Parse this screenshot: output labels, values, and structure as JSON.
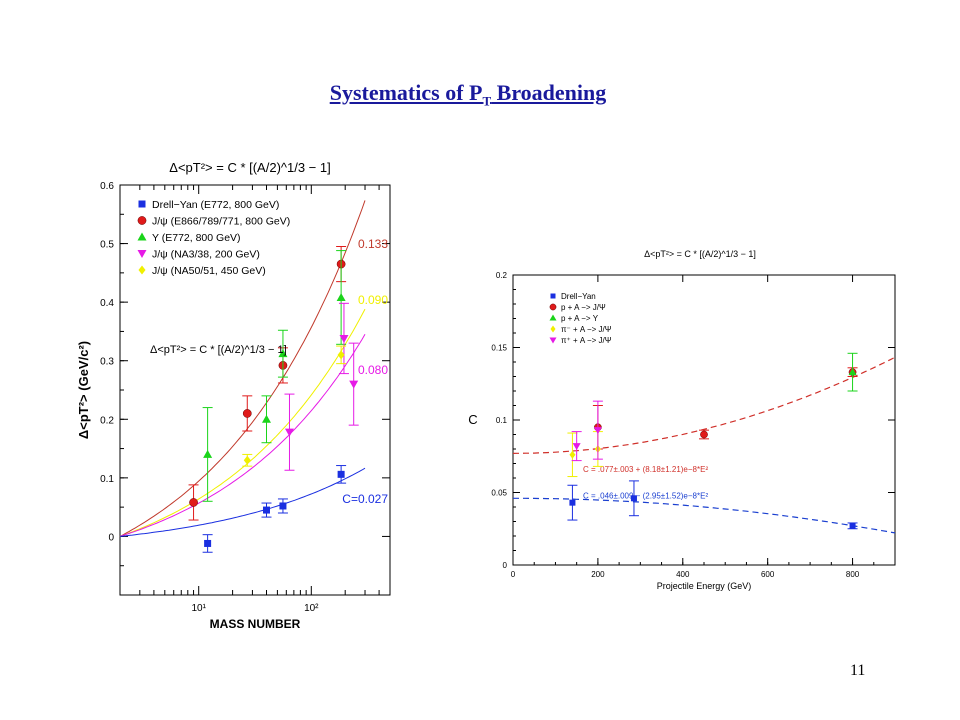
{
  "slide": {
    "title_main": "Systematics of P",
    "title_sub": "T",
    "title_rest": " Broadening",
    "page_number": "11"
  },
  "chart_data": [
    {
      "type": "scatter",
      "title": "Δ<pT²> = C * [(A/2)^1/3 − 1]",
      "xlabel": "MASS NUMBER",
      "ylabel": "Δ<pT²> (GeV/c²)",
      "xscale": "log",
      "xlim": [
        2,
        500
      ],
      "ylim": [
        -0.1,
        0.6
      ],
      "x_ticks": [
        "10¹",
        "10²"
      ],
      "y_ticks": [
        "0",
        "0.1",
        "0.2",
        "0.3",
        "0.4",
        "0.5",
        "0.6"
      ],
      "legend_placement": "top-left",
      "formula_annotation": "Δ<pT²> = C * [(A/2)^1/3 − 1]",
      "series": [
        {
          "name": "Drell−Yan (E772, 800 GeV)",
          "color": "#1a2fe0",
          "marker": "square",
          "points": [
            {
              "x": 12,
              "y": -0.012,
              "err": 0.015
            },
            {
              "x": 40,
              "y": 0.045,
              "err": 0.012
            },
            {
              "x": 56,
              "y": 0.052,
              "err": 0.012
            },
            {
              "x": 184,
              "y": 0.106,
              "err": 0.015
            }
          ]
        },
        {
          "name": "J/ψ (E866/789/771, 800 GeV)",
          "color": "#e01a1a",
          "marker": "circle",
          "points": [
            {
              "x": 9,
              "y": 0.058,
              "err": 0.03
            },
            {
              "x": 27,
              "y": 0.21,
              "err": 0.03
            },
            {
              "x": 56,
              "y": 0.292,
              "err": 0.03
            },
            {
              "x": 184,
              "y": 0.465,
              "err": 0.03
            }
          ]
        },
        {
          "name": "Υ (E772, 800 GeV)",
          "color": "#1ad41a",
          "marker": "triangle-up",
          "points": [
            {
              "x": 12,
              "y": 0.14,
              "err": 0.08
            },
            {
              "x": 40,
              "y": 0.2,
              "err": 0.04
            },
            {
              "x": 56,
              "y": 0.312,
              "err": 0.04
            },
            {
              "x": 184,
              "y": 0.408,
              "err": 0.08
            }
          ]
        },
        {
          "name": "J/ψ (NA3/38, 200 GeV)",
          "color": "#e61ae6",
          "marker": "triangle-down",
          "points": [
            {
              "x": 64,
              "y": 0.178,
              "err": 0.065
            },
            {
              "x": 195,
              "y": 0.338,
              "err": 0.06
            },
            {
              "x": 238,
              "y": 0.26,
              "err": 0.07
            }
          ]
        },
        {
          "name": "J/ψ (NA50/51, 450 GeV)",
          "color": "#f0f000",
          "marker": "diamond",
          "points": [
            {
              "x": 27,
              "y": 0.13,
              "err": 0.01
            },
            {
              "x": 184,
              "y": 0.31,
              "err": 0.015
            }
          ]
        }
      ],
      "fits": [
        {
          "label": "0.133",
          "C": 0.133,
          "color": "#c0392b"
        },
        {
          "label": "0.090",
          "C": 0.09,
          "color": "#f0f000"
        },
        {
          "label": "0.080",
          "C": 0.08,
          "color": "#e61ae6"
        },
        {
          "label": "C=0.027",
          "C": 0.027,
          "color": "#1a2fe0"
        }
      ]
    },
    {
      "type": "scatter",
      "title": "Δ<pT²> = C * [(A/2)^1/3 − 1]",
      "xlabel": "Projectile Energy (GeV)",
      "ylabel": "C",
      "xlim": [
        0,
        900
      ],
      "ylim": [
        0,
        0.2
      ],
      "x_ticks": [
        "0",
        "200",
        "400",
        "600",
        "800"
      ],
      "y_ticks": [
        "0",
        "0.05",
        "0.1",
        "0.15",
        "0.2"
      ],
      "legend_placement": "top-left",
      "series": [
        {
          "name": "Drell−Yan",
          "color": "#1a2fe0",
          "marker": "square",
          "points": [
            {
              "x": 140,
              "y": 0.043,
              "err": 0.012
            },
            {
              "x": 285,
              "y": 0.046,
              "err": 0.012
            },
            {
              "x": 800,
              "y": 0.027,
              "err": 0.002
            }
          ]
        },
        {
          "name": "p + A −> J/Ψ",
          "color": "#e01a1a",
          "marker": "circle",
          "points": [
            {
              "x": 200,
              "y": 0.095,
              "err": 0.015
            },
            {
              "x": 450,
              "y": 0.09,
              "err": 0.003
            },
            {
              "x": 800,
              "y": 0.133,
              "err": 0.003
            }
          ]
        },
        {
          "name": "p + A −> Υ",
          "color": "#1ad41a",
          "marker": "triangle-up",
          "points": [
            {
              "x": 800,
              "y": 0.133,
              "err": 0.013
            }
          ]
        },
        {
          "name": "π⁻ + A −> J/Ψ",
          "color": "#f0f000",
          "marker": "diamond",
          "points": [
            {
              "x": 140,
              "y": 0.076,
              "err": 0.015
            },
            {
              "x": 200,
              "y": 0.08,
              "err": 0.012
            }
          ]
        },
        {
          "name": "π⁺ + A −> J/Ψ",
          "color": "#e61ae6",
          "marker": "triangle-down",
          "points": [
            {
              "x": 150,
              "y": 0.082,
              "err": 0.01
            },
            {
              "x": 200,
              "y": 0.093,
              "err": 0.02
            }
          ]
        }
      ],
      "fits": [
        {
          "label": "C = .077±.003 + (8.18±1.21)e−8*E²",
          "a": 0.077,
          "b": 8.18e-08,
          "color": "#d0302a"
        },
        {
          "label": "C = .046±.009 − (2.95±1.52)e−8*E²",
          "a": 0.046,
          "b": -2.95e-08,
          "color": "#1a3fd0"
        }
      ]
    }
  ]
}
